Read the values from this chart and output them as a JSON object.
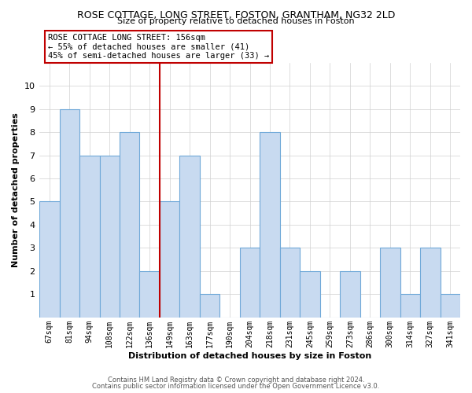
{
  "title": "ROSE COTTAGE, LONG STREET, FOSTON, GRANTHAM, NG32 2LD",
  "subtitle": "Size of property relative to detached houses in Foston",
  "xlabel": "Distribution of detached houses by size in Foston",
  "ylabel": "Number of detached properties",
  "categories": [
    "67sqm",
    "81sqm",
    "94sqm",
    "108sqm",
    "122sqm",
    "136sqm",
    "149sqm",
    "163sqm",
    "177sqm",
    "190sqm",
    "204sqm",
    "218sqm",
    "231sqm",
    "245sqm",
    "259sqm",
    "273sqm",
    "286sqm",
    "300sqm",
    "314sqm",
    "327sqm",
    "341sqm"
  ],
  "values": [
    5,
    9,
    7,
    7,
    8,
    2,
    5,
    7,
    1,
    0,
    3,
    8,
    3,
    2,
    0,
    2,
    0,
    3,
    1,
    3,
    1
  ],
  "bar_color": "#c8daf0",
  "bar_edge_color": "#6fa8d8",
  "reference_line_x_label": "149sqm",
  "reference_line_color": "#c00000",
  "annotation_title": "ROSE COTTAGE LONG STREET: 156sqm",
  "annotation_line1": "← 55% of detached houses are smaller (41)",
  "annotation_line2": "45% of semi-detached houses are larger (33) →",
  "annotation_box_color": "#c00000",
  "ylim": [
    0,
    11
  ],
  "yticks": [
    0,
    1,
    2,
    3,
    4,
    5,
    6,
    7,
    8,
    9,
    10,
    11
  ],
  "footer1": "Contains HM Land Registry data © Crown copyright and database right 2024.",
  "footer2": "Contains public sector information licensed under the Open Government Licence v3.0.",
  "background_color": "#ffffff",
  "grid_color": "#d0d0d0"
}
